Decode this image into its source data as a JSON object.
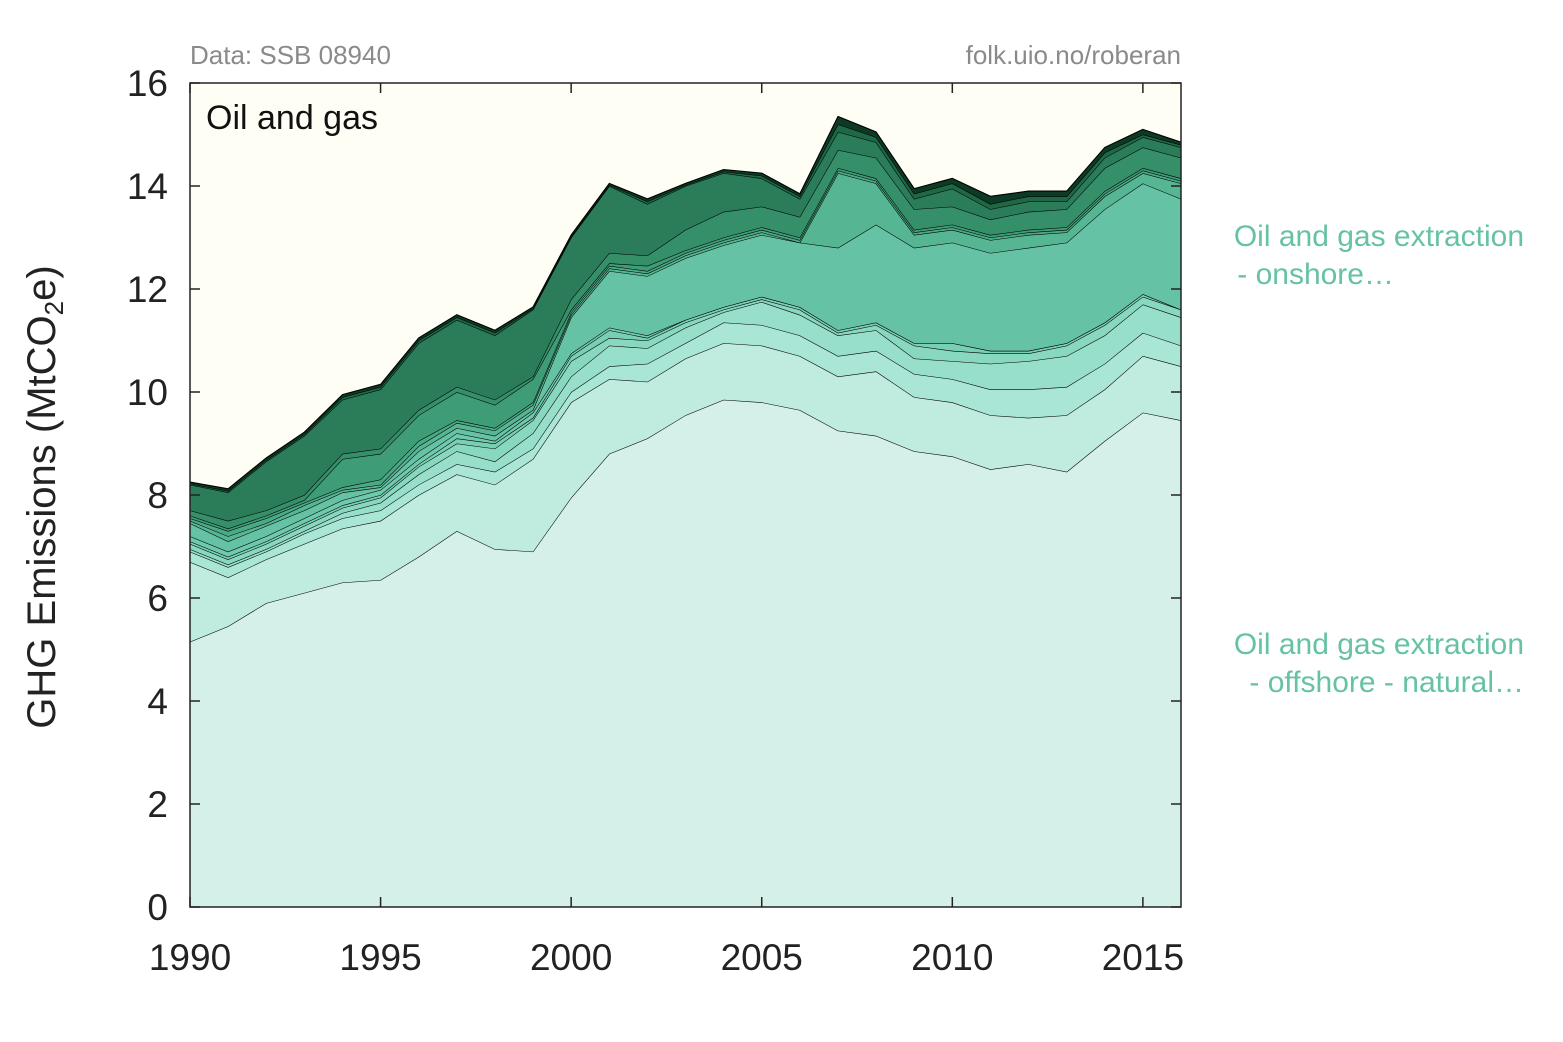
{
  "source_left": "Data: SSB 08940",
  "source_right": "folk.uio.no/roberan",
  "ylabel_main": "GHG Emissions (MtCO",
  "ylabel_sub": "2",
  "ylabel_end": "e)",
  "legend": [
    {
      "line1": "Oil and gas extraction",
      "line2": "  - onshore…",
      "color": "#66c2a5"
    },
    {
      "line1": "Oil and gas extraction",
      "line2": "  - offshore - natural…",
      "color": "#66c2a5"
    }
  ],
  "chart_data": {
    "type": "area",
    "stacked": true,
    "title": "Oil and gas",
    "xlabel": "",
    "ylabel": "GHG Emissions (MtCO2e)",
    "xlim": [
      1990,
      2016
    ],
    "ylim": [
      0,
      16
    ],
    "xticks": [
      1990,
      1995,
      2000,
      2005,
      2010,
      2015
    ],
    "yticks": [
      0,
      2,
      4,
      6,
      8,
      10,
      12,
      14,
      16
    ],
    "grid": false,
    "background": "#fffef5",
    "x": [
      1990,
      1991,
      1992,
      1993,
      1994,
      1995,
      1996,
      1997,
      1998,
      1999,
      2000,
      2001,
      2002,
      2003,
      2004,
      2005,
      2006,
      2007,
      2008,
      2009,
      2010,
      2011,
      2012,
      2013,
      2014,
      2015,
      2016
    ],
    "cumulative_tops": [
      [
        5.15,
        5.45,
        5.9,
        6.1,
        6.3,
        6.35,
        6.8,
        7.3,
        6.95,
        6.9,
        7.95,
        8.8,
        9.1,
        9.55,
        9.85,
        9.8,
        9.65,
        9.25,
        9.15,
        8.85,
        8.75,
        8.5,
        8.6,
        8.45,
        9.05,
        9.6,
        9.45
      ],
      [
        6.7,
        6.4,
        6.75,
        7.05,
        7.35,
        7.5,
        8.0,
        8.4,
        8.2,
        8.7,
        9.8,
        10.25,
        10.2,
        10.65,
        10.95,
        10.9,
        10.7,
        10.3,
        10.4,
        9.9,
        9.8,
        9.55,
        9.5,
        9.55,
        10.05,
        10.7,
        10.5
      ],
      [
        6.9,
        6.6,
        6.9,
        7.25,
        7.55,
        7.7,
        8.2,
        8.6,
        8.45,
        8.9,
        10.0,
        10.5,
        10.55,
        10.95,
        11.35,
        11.3,
        11.1,
        10.7,
        10.8,
        10.35,
        10.25,
        10.05,
        10.05,
        10.1,
        10.55,
        11.15,
        10.9
      ],
      [
        6.95,
        6.65,
        6.95,
        7.3,
        7.65,
        7.85,
        8.4,
        8.85,
        8.65,
        9.2,
        10.3,
        10.9,
        10.85,
        11.25,
        11.55,
        11.75,
        11.5,
        11.1,
        11.2,
        10.65,
        10.6,
        10.55,
        10.6,
        10.7,
        11.1,
        11.7,
        11.45
      ],
      [
        7.05,
        6.75,
        7.05,
        7.4,
        7.75,
        7.95,
        8.55,
        9.0,
        8.9,
        9.45,
        10.6,
        11.05,
        11.0,
        11.35,
        11.6,
        11.8,
        11.6,
        11.15,
        11.3,
        10.9,
        10.8,
        10.75,
        10.75,
        10.9,
        11.3,
        11.85,
        11.6
      ],
      [
        7.1,
        6.8,
        7.1,
        7.45,
        7.8,
        8.0,
        8.6,
        9.1,
        9.0,
        9.5,
        10.7,
        11.2,
        11.05,
        11.4,
        11.65,
        11.85,
        11.65,
        11.2,
        11.35,
        10.95,
        10.95,
        10.8,
        10.8,
        10.95,
        11.35,
        11.9,
        11.6
      ],
      [
        7.2,
        6.9,
        7.2,
        7.55,
        7.9,
        8.1,
        8.7,
        9.2,
        9.05,
        9.6,
        10.75,
        11.25,
        11.1,
        11.4,
        11.65,
        11.85,
        11.65,
        11.2,
        11.35,
        10.95,
        10.95,
        10.8,
        10.8,
        10.95,
        11.35,
        11.9,
        11.6
      ],
      [
        7.45,
        7.1,
        7.4,
        7.7,
        8.05,
        8.15,
        8.85,
        9.3,
        9.15,
        9.65,
        11.45,
        12.35,
        12.25,
        12.6,
        12.85,
        13.05,
        12.9,
        12.8,
        13.25,
        12.8,
        12.9,
        12.7,
        12.8,
        12.9,
        13.55,
        14.05,
        13.75
      ],
      [
        7.5,
        7.2,
        7.45,
        7.8,
        8.1,
        8.2,
        8.95,
        9.4,
        9.25,
        9.75,
        11.5,
        12.4,
        12.3,
        12.65,
        12.9,
        13.1,
        12.9,
        14.25,
        14.05,
        13.05,
        13.15,
        12.95,
        13.05,
        13.1,
        13.8,
        14.25,
        14.05
      ],
      [
        7.55,
        7.3,
        7.55,
        7.85,
        8.15,
        8.3,
        9.05,
        9.45,
        9.3,
        9.8,
        11.55,
        12.45,
        12.35,
        12.7,
        12.95,
        13.15,
        12.95,
        14.3,
        14.1,
        13.1,
        13.2,
        13.0,
        13.1,
        13.15,
        13.85,
        14.3,
        14.1
      ],
      [
        7.6,
        7.35,
        7.6,
        7.9,
        8.7,
        8.8,
        9.55,
        10.0,
        9.75,
        10.25,
        11.6,
        12.5,
        12.45,
        12.75,
        13.0,
        13.2,
        13.0,
        14.35,
        14.15,
        13.15,
        13.25,
        13.05,
        13.15,
        13.2,
        13.9,
        14.35,
        14.15
      ],
      [
        7.7,
        7.5,
        7.7,
        8.0,
        8.8,
        8.9,
        9.65,
        10.1,
        9.85,
        10.3,
        11.8,
        12.7,
        12.65,
        13.15,
        13.5,
        13.6,
        13.4,
        14.7,
        14.55,
        13.55,
        13.6,
        13.35,
        13.5,
        13.55,
        14.35,
        14.75,
        14.55
      ],
      [
        8.2,
        8.05,
        8.65,
        9.15,
        9.85,
        10.05,
        10.95,
        11.4,
        11.1,
        11.6,
        13.0,
        14.0,
        13.65,
        14.0,
        14.25,
        14.15,
        13.75,
        15.05,
        14.85,
        13.75,
        13.95,
        13.55,
        13.7,
        13.7,
        14.55,
        14.95,
        14.75
      ],
      [
        8.22,
        8.08,
        8.68,
        9.18,
        9.9,
        10.1,
        11.0,
        11.45,
        11.15,
        11.62,
        13.02,
        14.02,
        13.7,
        14.02,
        14.28,
        14.2,
        13.8,
        15.2,
        14.95,
        13.85,
        14.05,
        13.65,
        13.8,
        13.8,
        14.65,
        15.0,
        14.8
      ],
      [
        8.25,
        8.12,
        8.72,
        9.22,
        9.95,
        10.15,
        11.05,
        11.5,
        11.2,
        11.65,
        13.05,
        14.05,
        13.75,
        14.05,
        14.32,
        14.25,
        13.85,
        15.35,
        15.05,
        13.95,
        14.15,
        13.8,
        13.9,
        13.9,
        14.75,
        15.1,
        14.85
      ]
    ],
    "layer_colors": [
      "#d5f0e8",
      "#c0ece0",
      "#a9e6d6",
      "#98dfcb",
      "#88d8c0",
      "#78d0b4",
      "#6fcaac",
      "#66c2a5",
      "#56b693",
      "#4aaa85",
      "#3e9c76",
      "#35906a",
      "#2a7d58",
      "#1e6844",
      "#0d3a24"
    ]
  }
}
